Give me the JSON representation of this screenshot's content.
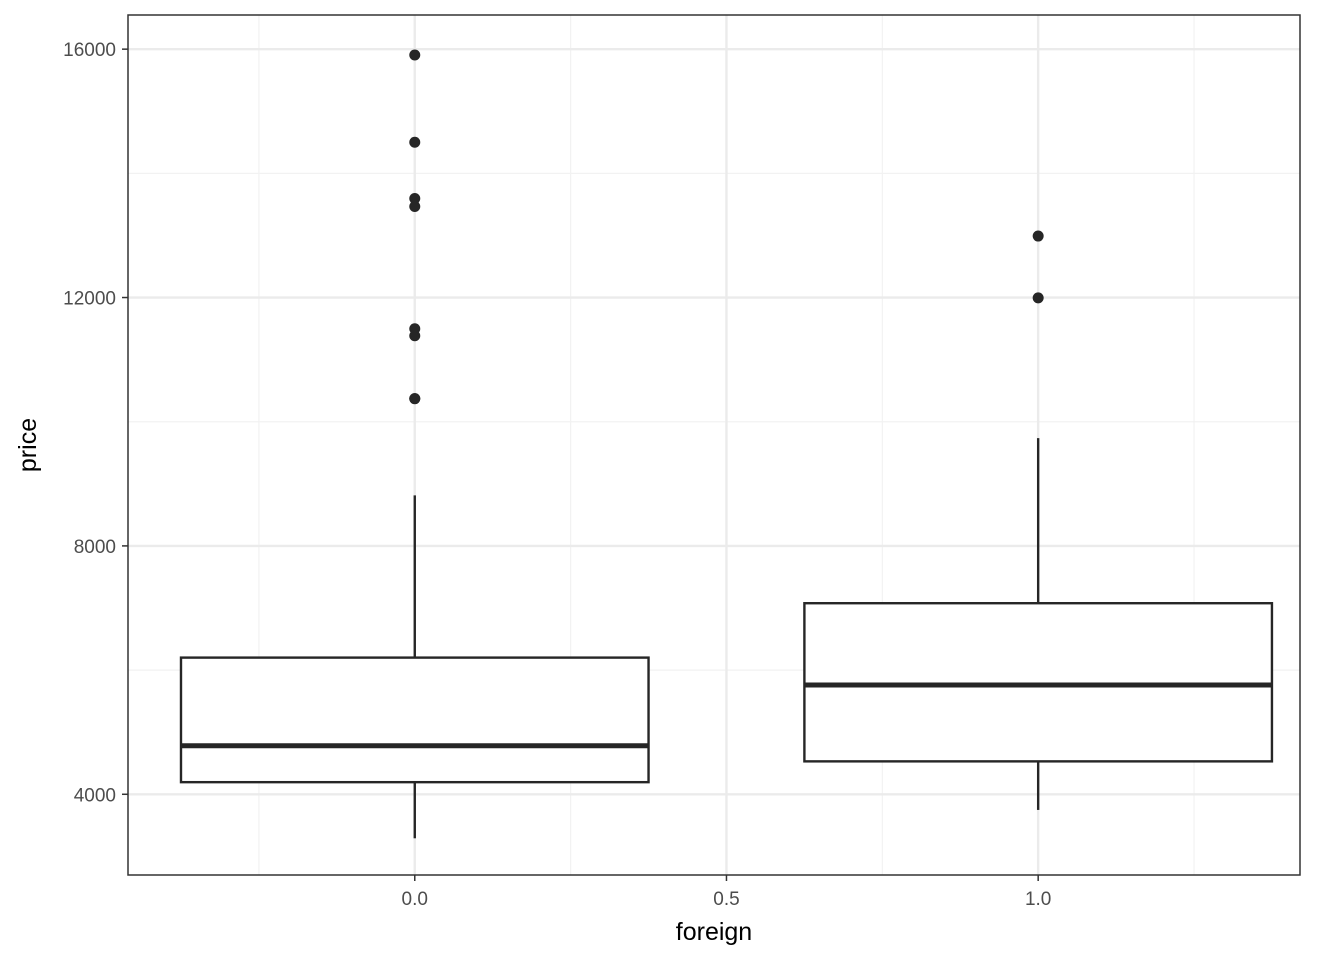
{
  "chart_data": {
    "type": "boxplot",
    "xlabel": "foreign",
    "ylabel": "price",
    "xlim": [
      -0.46,
      1.42
    ],
    "ylim": [
      2700,
      16550
    ],
    "x_ticks": [
      {
        "value": 0.0,
        "label": "0.0"
      },
      {
        "value": 0.5,
        "label": "0.5"
      },
      {
        "value": 1.0,
        "label": "1.0"
      }
    ],
    "x_minor_ticks": [
      -0.25,
      0.25,
      0.75,
      1.25
    ],
    "y_ticks": [
      {
        "value": 4000,
        "label": "4000"
      },
      {
        "value": 8000,
        "label": "8000"
      },
      {
        "value": 12000,
        "label": "12000"
      },
      {
        "value": 16000,
        "label": "16000"
      }
    ],
    "y_minor_ticks": [
      6000,
      10000,
      14000
    ],
    "box_width": 0.75,
    "grid": true,
    "boxes": [
      {
        "x": 0.0,
        "lower_whisker": 3291,
        "q1": 4195,
        "median": 4782,
        "q3": 6201,
        "upper_whisker": 8814,
        "outliers": [
          10371,
          10372,
          11385,
          11497,
          13466,
          13594,
          14500,
          15906
        ]
      },
      {
        "x": 1.0,
        "lower_whisker": 3748,
        "q1": 4530,
        "median": 5759,
        "q3": 7077,
        "upper_whisker": 9735,
        "outliers": [
          11995,
          12990
        ]
      }
    ],
    "colors": {
      "panel_border": "#333333",
      "grid_major": "#ebebeb",
      "grid_minor": "#f2f2f2",
      "box_stroke": "#262626",
      "box_fill": "#ffffff",
      "outlier": "#262626"
    }
  }
}
